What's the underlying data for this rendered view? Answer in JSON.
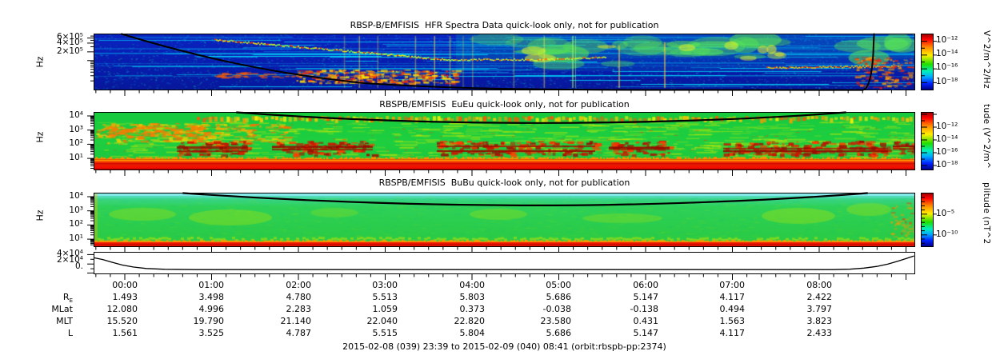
{
  "figure_caption": "2015-02-08 (039) 23:39 to 2015-02-09 (040) 08:41 (orbit:rbspb-pp:2374)",
  "chart_data": [
    {
      "type": "heatmap",
      "title": "RBSP-B/EMFISIS  HFR Spectra Data quick-look only, not for publication",
      "ylabel": "Hz",
      "yticks": [
        "6×10⁵",
        "4×10⁵",
        "2×10⁵"
      ],
      "yaxis_scale": "log",
      "yaxis_range_hz": [
        10000,
        800000
      ],
      "colorbar": {
        "ticks": [
          "10⁻¹²",
          "10⁻¹⁴",
          "10⁻¹⁶",
          "10⁻¹⁸"
        ],
        "unit": "V^2/m^2/Hz"
      },
      "overlay_line": "black fce trace descending from top-left to bottom near mid-interval, rising steeply near right edge"
    },
    {
      "type": "heatmap",
      "title": "RBSPB/EMFISIS  EuEu quick-look only, not for publication",
      "ylabel": "Hz",
      "yticks": [
        "10⁴",
        "10³",
        "10²",
        "10¹"
      ],
      "yaxis_scale": "log",
      "colorbar": {
        "ticks": [
          "10⁻¹²",
          "10⁻¹⁴",
          "10⁻¹⁶",
          "10⁻¹⁸"
        ],
        "unit": "tude (V^2/m^"
      },
      "overlay_line": "black fce arc clipped at panel top, dipping slightly mid-interval"
    },
    {
      "type": "heatmap",
      "title": "RBSPB/EMFISIS  BuBu quick-look only, not for publication",
      "ylabel": "Hz",
      "yticks": [
        "10⁴",
        "10³",
        "10²",
        "10¹"
      ],
      "yaxis_scale": "log",
      "colorbar": {
        "ticks": [
          "10⁻⁵",
          "10⁻¹⁰"
        ],
        "unit": "plitude (nT^2"
      },
      "overlay_line": "black fce arc clipped at panel top, dipping slightly mid-interval"
    },
    {
      "type": "line",
      "yticks": [
        "4×10⁴",
        "2×10⁴",
        "0."
      ],
      "x_hours_from_start": [
        0,
        0.5,
        1,
        2,
        3,
        4,
        5,
        6,
        7,
        8,
        8.7,
        9.03
      ],
      "values_approx": [
        33000,
        12000,
        8500,
        8000,
        8000,
        8000,
        8000,
        8000,
        9000,
        13000,
        26000,
        37000
      ]
    },
    {
      "type": "table",
      "categories": [
        "00:00",
        "01:00",
        "02:00",
        "03:00",
        "04:00",
        "05:00",
        "06:00",
        "07:00",
        "08:00"
      ],
      "rows": [
        {
          "label": "R",
          "sub": "E",
          "values": [
            "1.493",
            "3.498",
            "4.780",
            "5.513",
            "5.803",
            "5.686",
            "5.147",
            "4.117",
            "2.422"
          ]
        },
        {
          "label": "MLat",
          "values": [
            "12.080",
            "4.996",
            "2.283",
            "1.059",
            "0.373",
            "-0.038",
            "-0.138",
            "0.494",
            "3.797"
          ]
        },
        {
          "label": "MLT",
          "values": [
            "15.520",
            "19.790",
            "21.140",
            "22.040",
            "22.820",
            "23.580",
            "0.431",
            "1.563",
            "3.823"
          ]
        },
        {
          "label": "L",
          "values": [
            "1.561",
            "3.525",
            "4.787",
            "5.515",
            "5.804",
            "5.686",
            "5.147",
            "4.117",
            "2.433"
          ]
        }
      ]
    }
  ]
}
